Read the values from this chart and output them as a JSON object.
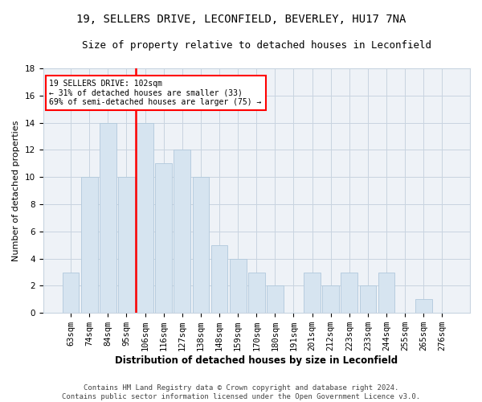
{
  "title1": "19, SELLERS DRIVE, LECONFIELD, BEVERLEY, HU17 7NA",
  "title2": "Size of property relative to detached houses in Leconfield",
  "xlabel": "Distribution of detached houses by size in Leconfield",
  "ylabel": "Number of detached properties",
  "bar_labels": [
    "63sqm",
    "74sqm",
    "84sqm",
    "95sqm",
    "106sqm",
    "116sqm",
    "127sqm",
    "138sqm",
    "148sqm",
    "159sqm",
    "170sqm",
    "180sqm",
    "191sqm",
    "201sqm",
    "212sqm",
    "223sqm",
    "233sqm",
    "244sqm",
    "255sqm",
    "265sqm",
    "276sqm"
  ],
  "bar_values": [
    3,
    10,
    14,
    10,
    14,
    11,
    12,
    10,
    5,
    4,
    3,
    2,
    0,
    3,
    2,
    3,
    2,
    3,
    0,
    1,
    0
  ],
  "bar_color": "#d6e4f0",
  "bar_edgecolor": "#b0c8dc",
  "subject_line_color": "red",
  "subject_line_xindex": 3.5,
  "annotation_line1": "19 SELLERS DRIVE: 102sqm",
  "annotation_line2": "← 31% of detached houses are smaller (33)",
  "annotation_line3": "69% of semi-detached houses are larger (75) →",
  "annotation_box_color": "red",
  "ylim": [
    0,
    18
  ],
  "yticks": [
    0,
    2,
    4,
    6,
    8,
    10,
    12,
    14,
    16,
    18
  ],
  "footer_text": "Contains HM Land Registry data © Crown copyright and database right 2024.\nContains public sector information licensed under the Open Government Licence v3.0.",
  "background_color": "#ffffff",
  "plot_background_color": "#eef2f7",
  "grid_color": "#c8d4e0",
  "title1_fontsize": 10,
  "title2_fontsize": 9,
  "xlabel_fontsize": 8.5,
  "ylabel_fontsize": 8,
  "tick_fontsize": 7.5,
  "footer_fontsize": 6.5
}
